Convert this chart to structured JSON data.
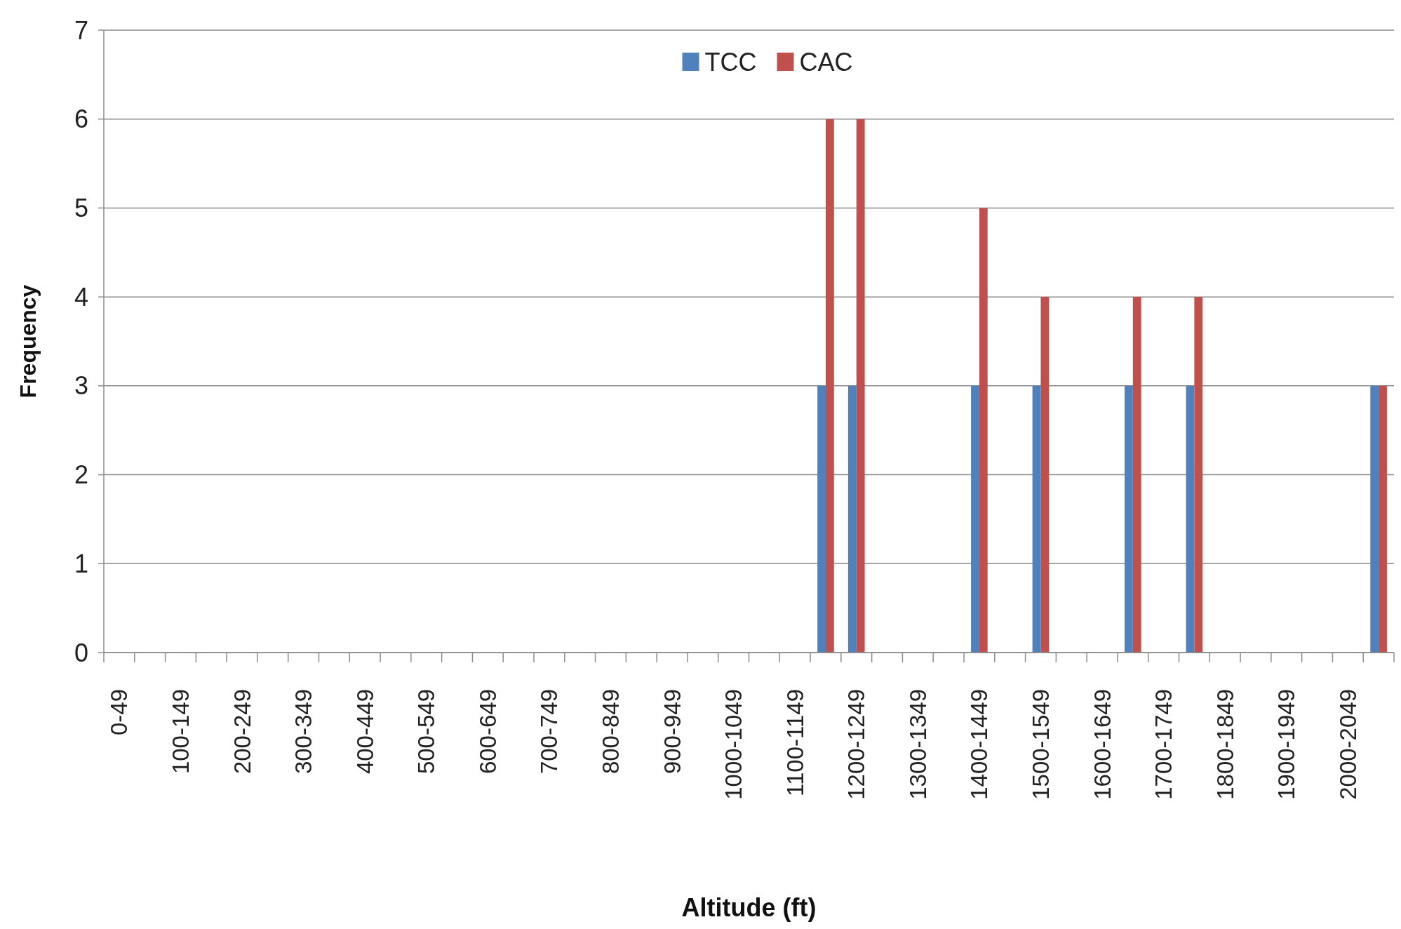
{
  "chart_data": {
    "type": "bar",
    "xlabel": "Altitude (ft)",
    "ylabel": "Frequency",
    "categories": [
      "0-49",
      null,
      "100-149",
      null,
      "200-249",
      null,
      "300-349",
      null,
      "400-449",
      null,
      "500-549",
      null,
      "600-649",
      null,
      "700-749",
      null,
      "800-849",
      null,
      "900-949",
      null,
      "1000-1049",
      null,
      "1100-1149",
      null,
      "1200-1249",
      null,
      "1300-1349",
      null,
      "1400-1449",
      null,
      "1500-1549",
      null,
      "1600-1649",
      null,
      "1700-1749",
      null,
      "1800-1849",
      null,
      "1900-1949",
      null,
      "2000-2049",
      null
    ],
    "series": [
      {
        "name": "TCC",
        "color": "#4f81bd",
        "values": [
          0,
          0,
          0,
          0,
          0,
          0,
          0,
          0,
          0,
          0,
          0,
          0,
          0,
          0,
          0,
          0,
          0,
          0,
          0,
          0,
          0,
          0,
          0,
          3,
          3,
          0,
          0,
          0,
          3,
          0,
          3,
          0,
          0,
          3,
          0,
          3,
          0,
          0,
          0,
          0,
          0,
          3
        ]
      },
      {
        "name": "CAC",
        "color": "#c0504d",
        "values": [
          0,
          0,
          0,
          0,
          0,
          0,
          0,
          0,
          0,
          0,
          0,
          0,
          0,
          0,
          0,
          0,
          0,
          0,
          0,
          0,
          0,
          0,
          0,
          6,
          6,
          0,
          0,
          0,
          5,
          0,
          4,
          0,
          0,
          4,
          0,
          4,
          0,
          0,
          0,
          0,
          0,
          3
        ]
      }
    ],
    "ylim": [
      0,
      7
    ],
    "yticks": [
      0,
      1,
      2,
      3,
      4,
      5,
      6,
      7
    ],
    "grid": "y",
    "legend": "top"
  }
}
